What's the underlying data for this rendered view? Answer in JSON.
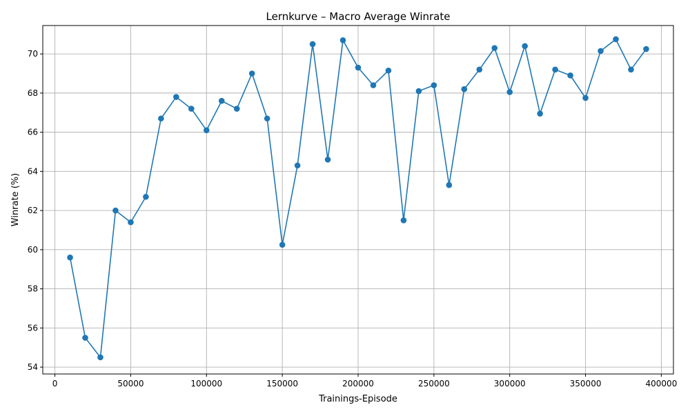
{
  "chart_data": {
    "type": "line",
    "title": "Lernkurve – Macro Average Winrate",
    "xlabel": "Trainings-Episode",
    "ylabel": "Winrate (%)",
    "xlim": [
      -8000,
      408000
    ],
    "ylim": [
      53.65,
      71.45
    ],
    "xticks": [
      0,
      50000,
      100000,
      150000,
      200000,
      250000,
      300000,
      350000,
      400000
    ],
    "yticks": [
      54,
      56,
      58,
      60,
      62,
      64,
      66,
      68,
      70
    ],
    "grid": true,
    "color": "#1f77b4",
    "marker": "circle",
    "series": [
      {
        "x": [
          10000,
          20000,
          30000,
          40000,
          50000,
          60000,
          70000,
          80000,
          90000,
          100000,
          110000,
          120000,
          130000,
          140000,
          150000,
          160000,
          170000,
          180000,
          190000,
          200000,
          210000,
          220000,
          230000,
          240000,
          250000,
          260000,
          270000,
          280000,
          290000,
          300000,
          310000,
          320000,
          330000,
          340000,
          350000,
          360000,
          370000,
          380000,
          390000
        ],
        "y": [
          59.6,
          55.5,
          54.5,
          62.0,
          61.4,
          62.7,
          66.7,
          67.8,
          67.2,
          66.1,
          67.6,
          67.2,
          69.0,
          66.7,
          60.25,
          64.3,
          70.5,
          64.6,
          70.7,
          69.3,
          68.4,
          69.15,
          61.5,
          68.1,
          68.4,
          63.3,
          68.2,
          69.2,
          70.3,
          68.05,
          70.4,
          66.95,
          69.2,
          68.9,
          67.75,
          70.15,
          70.75,
          69.2,
          70.25
        ]
      }
    ]
  }
}
